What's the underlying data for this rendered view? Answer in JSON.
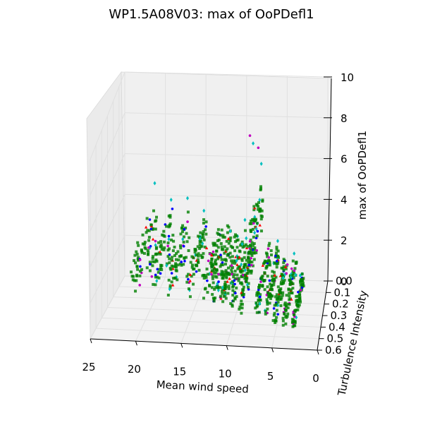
{
  "chart_data": {
    "type": "scatter3d",
    "title": "WP1.5A08V03: max of OoPDefl1",
    "xlabel": "Mean wind speed",
    "ylabel": "Turbulence Intensity",
    "zlabel": "max of OoPDefl1",
    "xlim": [
      0,
      25
    ],
    "ylim": [
      0,
      0.6
    ],
    "zlim": [
      0,
      10
    ],
    "xticks": [
      "25",
      "20",
      "15",
      "10",
      "5",
      "0"
    ],
    "yticks": [
      "0.0",
      "0.1",
      "0.2",
      "0.3",
      "0.4",
      "0.5",
      "0.6"
    ],
    "zticks": [
      "0",
      "2",
      "4",
      "6",
      "8",
      "10"
    ],
    "grid": true,
    "marker_colors": [
      "#00bfbf",
      "#bf00bf",
      "#ff0000",
      "#0000ff",
      "#008000"
    ],
    "clusters": [
      {
        "wind": 21,
        "ti_range": [
          0.02,
          0.48
        ],
        "z_range": [
          1.6,
          4.0
        ],
        "outliers": [
          4.9
        ]
      },
      {
        "wind": 19,
        "ti_range": [
          0.02,
          0.48
        ],
        "z_range": [
          1.6,
          3.9
        ],
        "outliers": [
          4.1
        ]
      },
      {
        "wind": 17,
        "ti_range": [
          0.02,
          0.48
        ],
        "z_range": [
          1.5,
          3.5
        ],
        "outliers": [
          4.2
        ]
      },
      {
        "wind": 15,
        "ti_range": [
          0.02,
          0.48
        ],
        "z_range": [
          1.5,
          3.1
        ],
        "outliers": [
          3.6
        ]
      },
      {
        "wind": 13,
        "ti_range": [
          0.02,
          0.48
        ],
        "z_range": [
          1.4,
          3.0
        ],
        "outliers": []
      },
      {
        "wind": 12,
        "ti_range": [
          0.02,
          0.48
        ],
        "z_range": [
          1.3,
          2.9
        ],
        "outliers": []
      },
      {
        "wind": 11,
        "ti_range": [
          0.02,
          0.48
        ],
        "z_range": [
          1.2,
          2.8
        ],
        "outliers": []
      },
      {
        "wind": 10,
        "ti_range": [
          0.02,
          0.48
        ],
        "z_range": [
          1.0,
          2.7
        ],
        "outliers": [
          3.2
        ]
      },
      {
        "wind": 9,
        "ti_range": [
          0.02,
          0.48
        ],
        "z_range": [
          0.9,
          2.3
        ],
        "outliers": [
          7.0,
          8.1
        ]
      },
      {
        "wind": 8,
        "ti_range": [
          0.02,
          0.48
        ],
        "z_range": [
          3.0,
          5.2
        ],
        "outliers": [
          6.0,
          7.5
        ]
      },
      {
        "wind": 7,
        "ti_range": [
          0.02,
          0.48
        ],
        "z_range": [
          1.0,
          2.1
        ],
        "outliers": []
      },
      {
        "wind": 6,
        "ti_range": [
          0.02,
          0.48
        ],
        "z_range": [
          0.8,
          1.8
        ],
        "outliers": [
          2.2
        ]
      },
      {
        "wind": 5,
        "ti_range": [
          0.02,
          0.48
        ],
        "z_range": [
          0.5,
          1.5
        ],
        "outliers": []
      },
      {
        "wind": 4,
        "ti_range": [
          0.02,
          0.48
        ],
        "z_range": [
          0.3,
          1.2
        ],
        "outliers": [
          1.6
        ]
      },
      {
        "wind": 3,
        "ti_range": [
          0.02,
          0.48
        ],
        "z_range": [
          0.1,
          0.6
        ],
        "outliers": []
      }
    ]
  }
}
